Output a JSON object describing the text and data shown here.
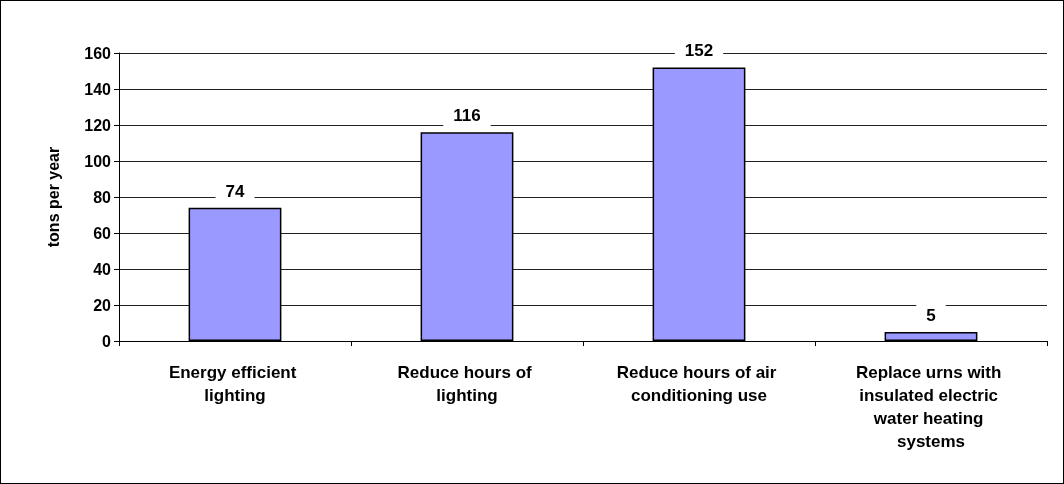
{
  "chart_data": {
    "type": "bar",
    "ylabel": "tons per year",
    "categories": [
      "Energy efficient lighting",
      "Reduce hours of lighting",
      "Reduce hours of air conditioning use",
      "Replace urns with insulated electric water heating systems"
    ],
    "values": [
      74,
      116,
      152,
      5
    ],
    "color": "#9999ff",
    "ylim": [
      0,
      160
    ],
    "yticks": [
      0,
      20,
      40,
      60,
      80,
      100,
      120,
      140,
      160
    ],
    "grid": "y",
    "data_labels": true
  }
}
